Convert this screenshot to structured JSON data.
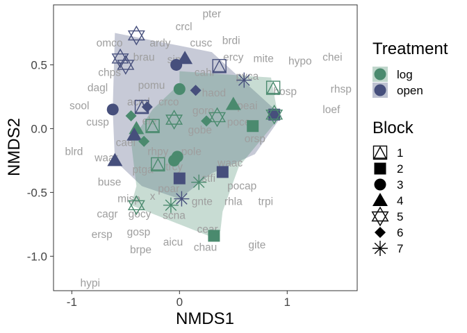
{
  "chart_data": {
    "type": "scatter",
    "title": "",
    "xlabel": "NMDS1",
    "ylabel": "NMDS2",
    "xlim": [
      -1.17,
      1.65
    ],
    "ylim": [
      -1.27,
      0.97
    ],
    "xticks": [
      -1,
      0,
      1
    ],
    "xtick_labels": [
      "-1",
      "0",
      "1"
    ],
    "yticks": [
      0.5,
      0.0,
      -0.5,
      -1.0
    ],
    "ytick_labels": [
      "0.5",
      "0.0",
      "-0.5",
      "-1.0"
    ],
    "grid": false,
    "legend": {
      "placement": "right",
      "treatment_title": "Treatment",
      "treatment_items": [
        {
          "label": "log",
          "color": "#4a8a6e"
        },
        {
          "label": "open",
          "color": "#464f7c"
        }
      ],
      "block_title": "Block",
      "block_items": [
        {
          "label": "1",
          "shape": "triangle-open"
        },
        {
          "label": "2",
          "shape": "square"
        },
        {
          "label": "3",
          "shape": "circle"
        },
        {
          "label": "4",
          "shape": "triangle"
        },
        {
          "label": "5",
          "shape": "star-of-david"
        },
        {
          "label": "6",
          "shape": "diamond"
        },
        {
          "label": "7",
          "shape": "asterisk"
        }
      ]
    },
    "hulls": [
      {
        "treatment": "open",
        "color": "#464f7c",
        "points": [
          [
            -0.6,
            0.75
          ],
          [
            0.3,
            0.6
          ],
          [
            0.95,
            0.1
          ],
          [
            0.7,
            -0.2
          ],
          [
            0.3,
            -0.35
          ],
          [
            0.0,
            -0.55
          ],
          [
            -0.35,
            -0.45
          ],
          [
            -0.6,
            -0.25
          ],
          [
            -0.62,
            0.15
          ]
        ]
      },
      {
        "treatment": "log",
        "color": "#4a8a6e",
        "points": [
          [
            0.0,
            0.45
          ],
          [
            0.85,
            0.4
          ],
          [
            0.92,
            0.08
          ],
          [
            0.55,
            -0.3
          ],
          [
            0.4,
            -0.65
          ],
          [
            0.38,
            -0.8
          ],
          [
            0.3,
            -0.85
          ],
          [
            0.0,
            -0.75
          ],
          [
            -0.45,
            -0.6
          ],
          [
            -0.4,
            -0.45
          ],
          [
            -0.45,
            -0.1
          ],
          [
            -0.25,
            0.15
          ],
          [
            0.0,
            0.35
          ]
        ]
      }
    ],
    "species": [
      {
        "label": "pter",
        "x": 0.3,
        "y": 0.9
      },
      {
        "label": "crcl",
        "x": 0.04,
        "y": 0.8
      },
      {
        "label": "ardy",
        "x": -0.18,
        "y": 0.67
      },
      {
        "label": "cusc",
        "x": 0.2,
        "y": 0.67
      },
      {
        "label": "brdi",
        "x": 0.48,
        "y": 0.69
      },
      {
        "label": "omco",
        "x": -0.65,
        "y": 0.67
      },
      {
        "label": "ercy",
        "x": 0.5,
        "y": 0.56
      },
      {
        "label": "mite",
        "x": 0.78,
        "y": 0.55
      },
      {
        "label": "hypo",
        "x": 1.12,
        "y": 0.53
      },
      {
        "label": "chei",
        "x": 1.42,
        "y": 0.56
      },
      {
        "label": "brau",
        "x": -0.33,
        "y": 0.56
      },
      {
        "label": "sip",
        "x": -0.05,
        "y": 0.54
      },
      {
        "label": "cahi",
        "x": 0.23,
        "y": 0.44
      },
      {
        "label": "chps",
        "x": -0.65,
        "y": 0.44
      },
      {
        "label": "pvca",
        "x": 0.63,
        "y": 0.41
      },
      {
        "label": "pomu",
        "x": -0.26,
        "y": 0.34
      },
      {
        "label": "dagl",
        "x": -0.76,
        "y": 0.32
      },
      {
        "label": "hosp",
        "x": 0.98,
        "y": 0.29
      },
      {
        "label": "rhsp",
        "x": 1.5,
        "y": 0.31
      },
      {
        "label": "haod",
        "x": 0.32,
        "y": 0.28
      },
      {
        "label": "acml",
        "x": -0.38,
        "y": 0.21
      },
      {
        "label": "crco",
        "x": -0.1,
        "y": 0.21
      },
      {
        "label": "peai",
        "x": 0.63,
        "y": 0.18
      },
      {
        "label": "sool",
        "x": -0.93,
        "y": 0.18
      },
      {
        "label": "loef",
        "x": 1.41,
        "y": 0.15
      },
      {
        "label": "goro",
        "x": 0.22,
        "y": 0.14
      },
      {
        "label": "cusp",
        "x": -0.76,
        "y": 0.05
      },
      {
        "label": "ele",
        "x": -0.28,
        "y": 0.06
      },
      {
        "label": "poce",
        "x": 0.55,
        "y": 0.05
      },
      {
        "label": "gobe",
        "x": 0.19,
        "y": -0.01
      },
      {
        "label": "orsp",
        "x": 0.7,
        "y": -0.08
      },
      {
        "label": "caei",
        "x": -0.5,
        "y": -0.11
      },
      {
        "label": "blrd",
        "x": -0.98,
        "y": -0.18
      },
      {
        "label": "rhpy",
        "x": -0.2,
        "y": -0.18
      },
      {
        "label": "pole",
        "x": 0.11,
        "y": -0.18
      },
      {
        "label": "waar",
        "x": -0.68,
        "y": -0.23
      },
      {
        "label": "waac",
        "x": 0.47,
        "y": -0.27
      },
      {
        "label": "trcy",
        "x": -0.05,
        "y": -0.3
      },
      {
        "label": "ptga",
        "x": -0.34,
        "y": -0.32
      },
      {
        "label": "stfi",
        "x": 0.27,
        "y": -0.39
      },
      {
        "label": "buse",
        "x": -0.65,
        "y": -0.42
      },
      {
        "label": "pocap",
        "x": 0.58,
        "y": -0.45
      },
      {
        "label": "poar",
        "x": -0.1,
        "y": -0.47
      },
      {
        "label": "misp",
        "x": -0.47,
        "y": -0.55
      },
      {
        "label": "x",
        "x": -0.25,
        "y": -0.53
      },
      {
        "label": "trpi",
        "x": 0.8,
        "y": -0.57
      },
      {
        "label": "rhla",
        "x": 0.5,
        "y": -0.57
      },
      {
        "label": "gnte",
        "x": 0.21,
        "y": -0.57
      },
      {
        "label": "cagr",
        "x": -0.67,
        "y": -0.67
      },
      {
        "label": "gocy",
        "x": -0.37,
        "y": -0.67
      },
      {
        "label": "scna",
        "x": -0.05,
        "y": -0.68
      },
      {
        "label": "cear",
        "x": 0.26,
        "y": -0.79
      },
      {
        "label": "ersp",
        "x": -0.72,
        "y": -0.83
      },
      {
        "label": "gosp",
        "x": -0.38,
        "y": -0.81
      },
      {
        "label": "aicu",
        "x": -0.06,
        "y": -0.89
      },
      {
        "label": "chau",
        "x": 0.24,
        "y": -0.93
      },
      {
        "label": "gite",
        "x": 0.72,
        "y": -0.91
      },
      {
        "label": "brpe",
        "x": -0.36,
        "y": -0.95
      },
      {
        "label": "hypi",
        "x": -0.83,
        "y": -1.21
      }
    ],
    "points": [
      {
        "x": -0.4,
        "y": 0.73,
        "treatment": "open",
        "block": "5"
      },
      {
        "x": -0.55,
        "y": 0.55,
        "treatment": "open",
        "block": "5"
      },
      {
        "x": -0.5,
        "y": 0.5,
        "treatment": "open",
        "block": "5"
      },
      {
        "x": 0.05,
        "y": 0.55,
        "treatment": "open",
        "block": "4"
      },
      {
        "x": -0.03,
        "y": 0.5,
        "treatment": "open",
        "block": "3"
      },
      {
        "x": 0.37,
        "y": 0.49,
        "treatment": "open",
        "block": "1"
      },
      {
        "x": 0.6,
        "y": 0.38,
        "treatment": "open",
        "block": "7"
      },
      {
        "x": 0.0,
        "y": 0.31,
        "treatment": "log",
        "block": "3"
      },
      {
        "x": 0.15,
        "y": 0.3,
        "treatment": "open",
        "block": "6"
      },
      {
        "x": 0.87,
        "y": 0.32,
        "treatment": "log",
        "block": "1"
      },
      {
        "x": -0.35,
        "y": 0.17,
        "treatment": "open",
        "block": "1"
      },
      {
        "x": -0.3,
        "y": 0.17,
        "treatment": "open",
        "block": "6"
      },
      {
        "x": -0.62,
        "y": 0.15,
        "treatment": "open",
        "block": "3"
      },
      {
        "x": 0.5,
        "y": 0.19,
        "treatment": "log",
        "block": "4"
      },
      {
        "x": 0.88,
        "y": 0.11,
        "treatment": "open",
        "block": "2"
      },
      {
        "x": 0.88,
        "y": 0.11,
        "treatment": "log",
        "block": "5"
      },
      {
        "x": -0.05,
        "y": 0.07,
        "treatment": "log",
        "block": "5"
      },
      {
        "x": 0.35,
        "y": 0.09,
        "treatment": "log",
        "block": "5"
      },
      {
        "x": -0.45,
        "y": 0.1,
        "treatment": "log",
        "block": "6"
      },
      {
        "x": 0.25,
        "y": 0.06,
        "treatment": "log",
        "block": "6"
      },
      {
        "x": 0.68,
        "y": 0.02,
        "treatment": "log",
        "block": "2"
      },
      {
        "x": -0.4,
        "y": 0.0,
        "treatment": "log",
        "block": "4"
      },
      {
        "x": -0.25,
        "y": 0.02,
        "treatment": "log",
        "block": "1"
      },
      {
        "x": -0.42,
        "y": -0.05,
        "treatment": "open",
        "block": "4"
      },
      {
        "x": -0.33,
        "y": -0.1,
        "treatment": "log",
        "block": "6"
      },
      {
        "x": -0.6,
        "y": -0.25,
        "treatment": "open",
        "block": "4"
      },
      {
        "x": -0.02,
        "y": -0.22,
        "treatment": "log",
        "block": "3"
      },
      {
        "x": -0.05,
        "y": -0.25,
        "treatment": "log",
        "block": "3"
      },
      {
        "x": -0.2,
        "y": -0.28,
        "treatment": "log",
        "block": "1"
      },
      {
        "x": 0.4,
        "y": -0.34,
        "treatment": "open",
        "block": "2"
      },
      {
        "x": 0.0,
        "y": -0.39,
        "treatment": "open",
        "block": "2"
      },
      {
        "x": 0.18,
        "y": -0.42,
        "treatment": "log",
        "block": "7"
      },
      {
        "x": 0.02,
        "y": -0.55,
        "treatment": "open",
        "block": "7"
      },
      {
        "x": -0.4,
        "y": -0.6,
        "treatment": "log",
        "block": "5"
      },
      {
        "x": -0.08,
        "y": -0.6,
        "treatment": "log",
        "block": "7"
      },
      {
        "x": 0.32,
        "y": -0.84,
        "treatment": "log",
        "block": "2"
      }
    ]
  }
}
